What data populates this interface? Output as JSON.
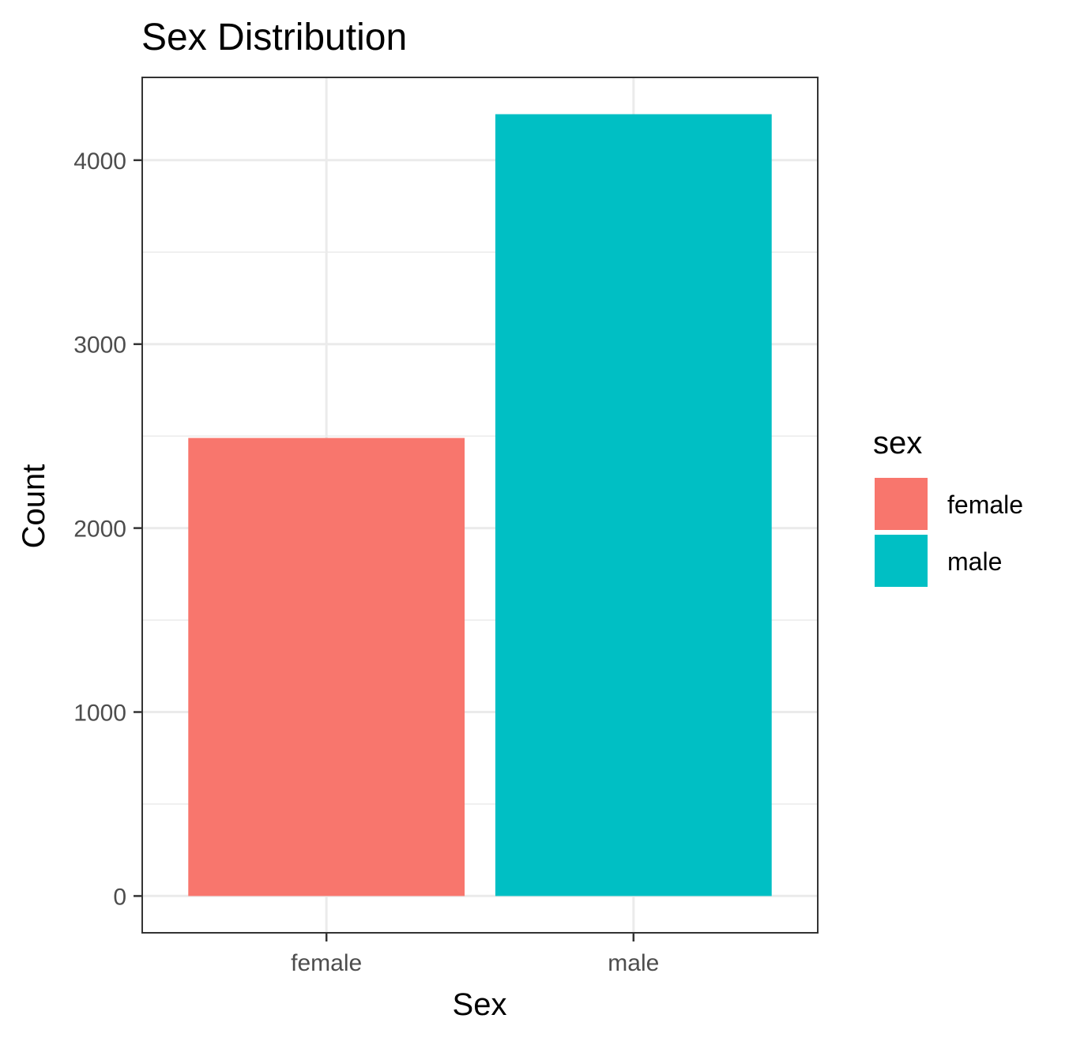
{
  "chart_data": {
    "type": "bar",
    "title": "Sex Distribution",
    "xlabel": "Sex",
    "ylabel": "Count",
    "categories": [
      "female",
      "male"
    ],
    "values": [
      2490,
      4250
    ],
    "colors": [
      "#F8766D",
      "#00BFC4"
    ],
    "ylim": [
      -200,
      4450
    ],
    "yticks": [
      0,
      1000,
      2000,
      3000,
      4000
    ],
    "ytick_labels": [
      "0",
      "1000",
      "2000",
      "3000",
      "4000"
    ],
    "grid": true,
    "legend": {
      "title": "sex",
      "position": "right",
      "entries": [
        "female",
        "male"
      ]
    }
  }
}
